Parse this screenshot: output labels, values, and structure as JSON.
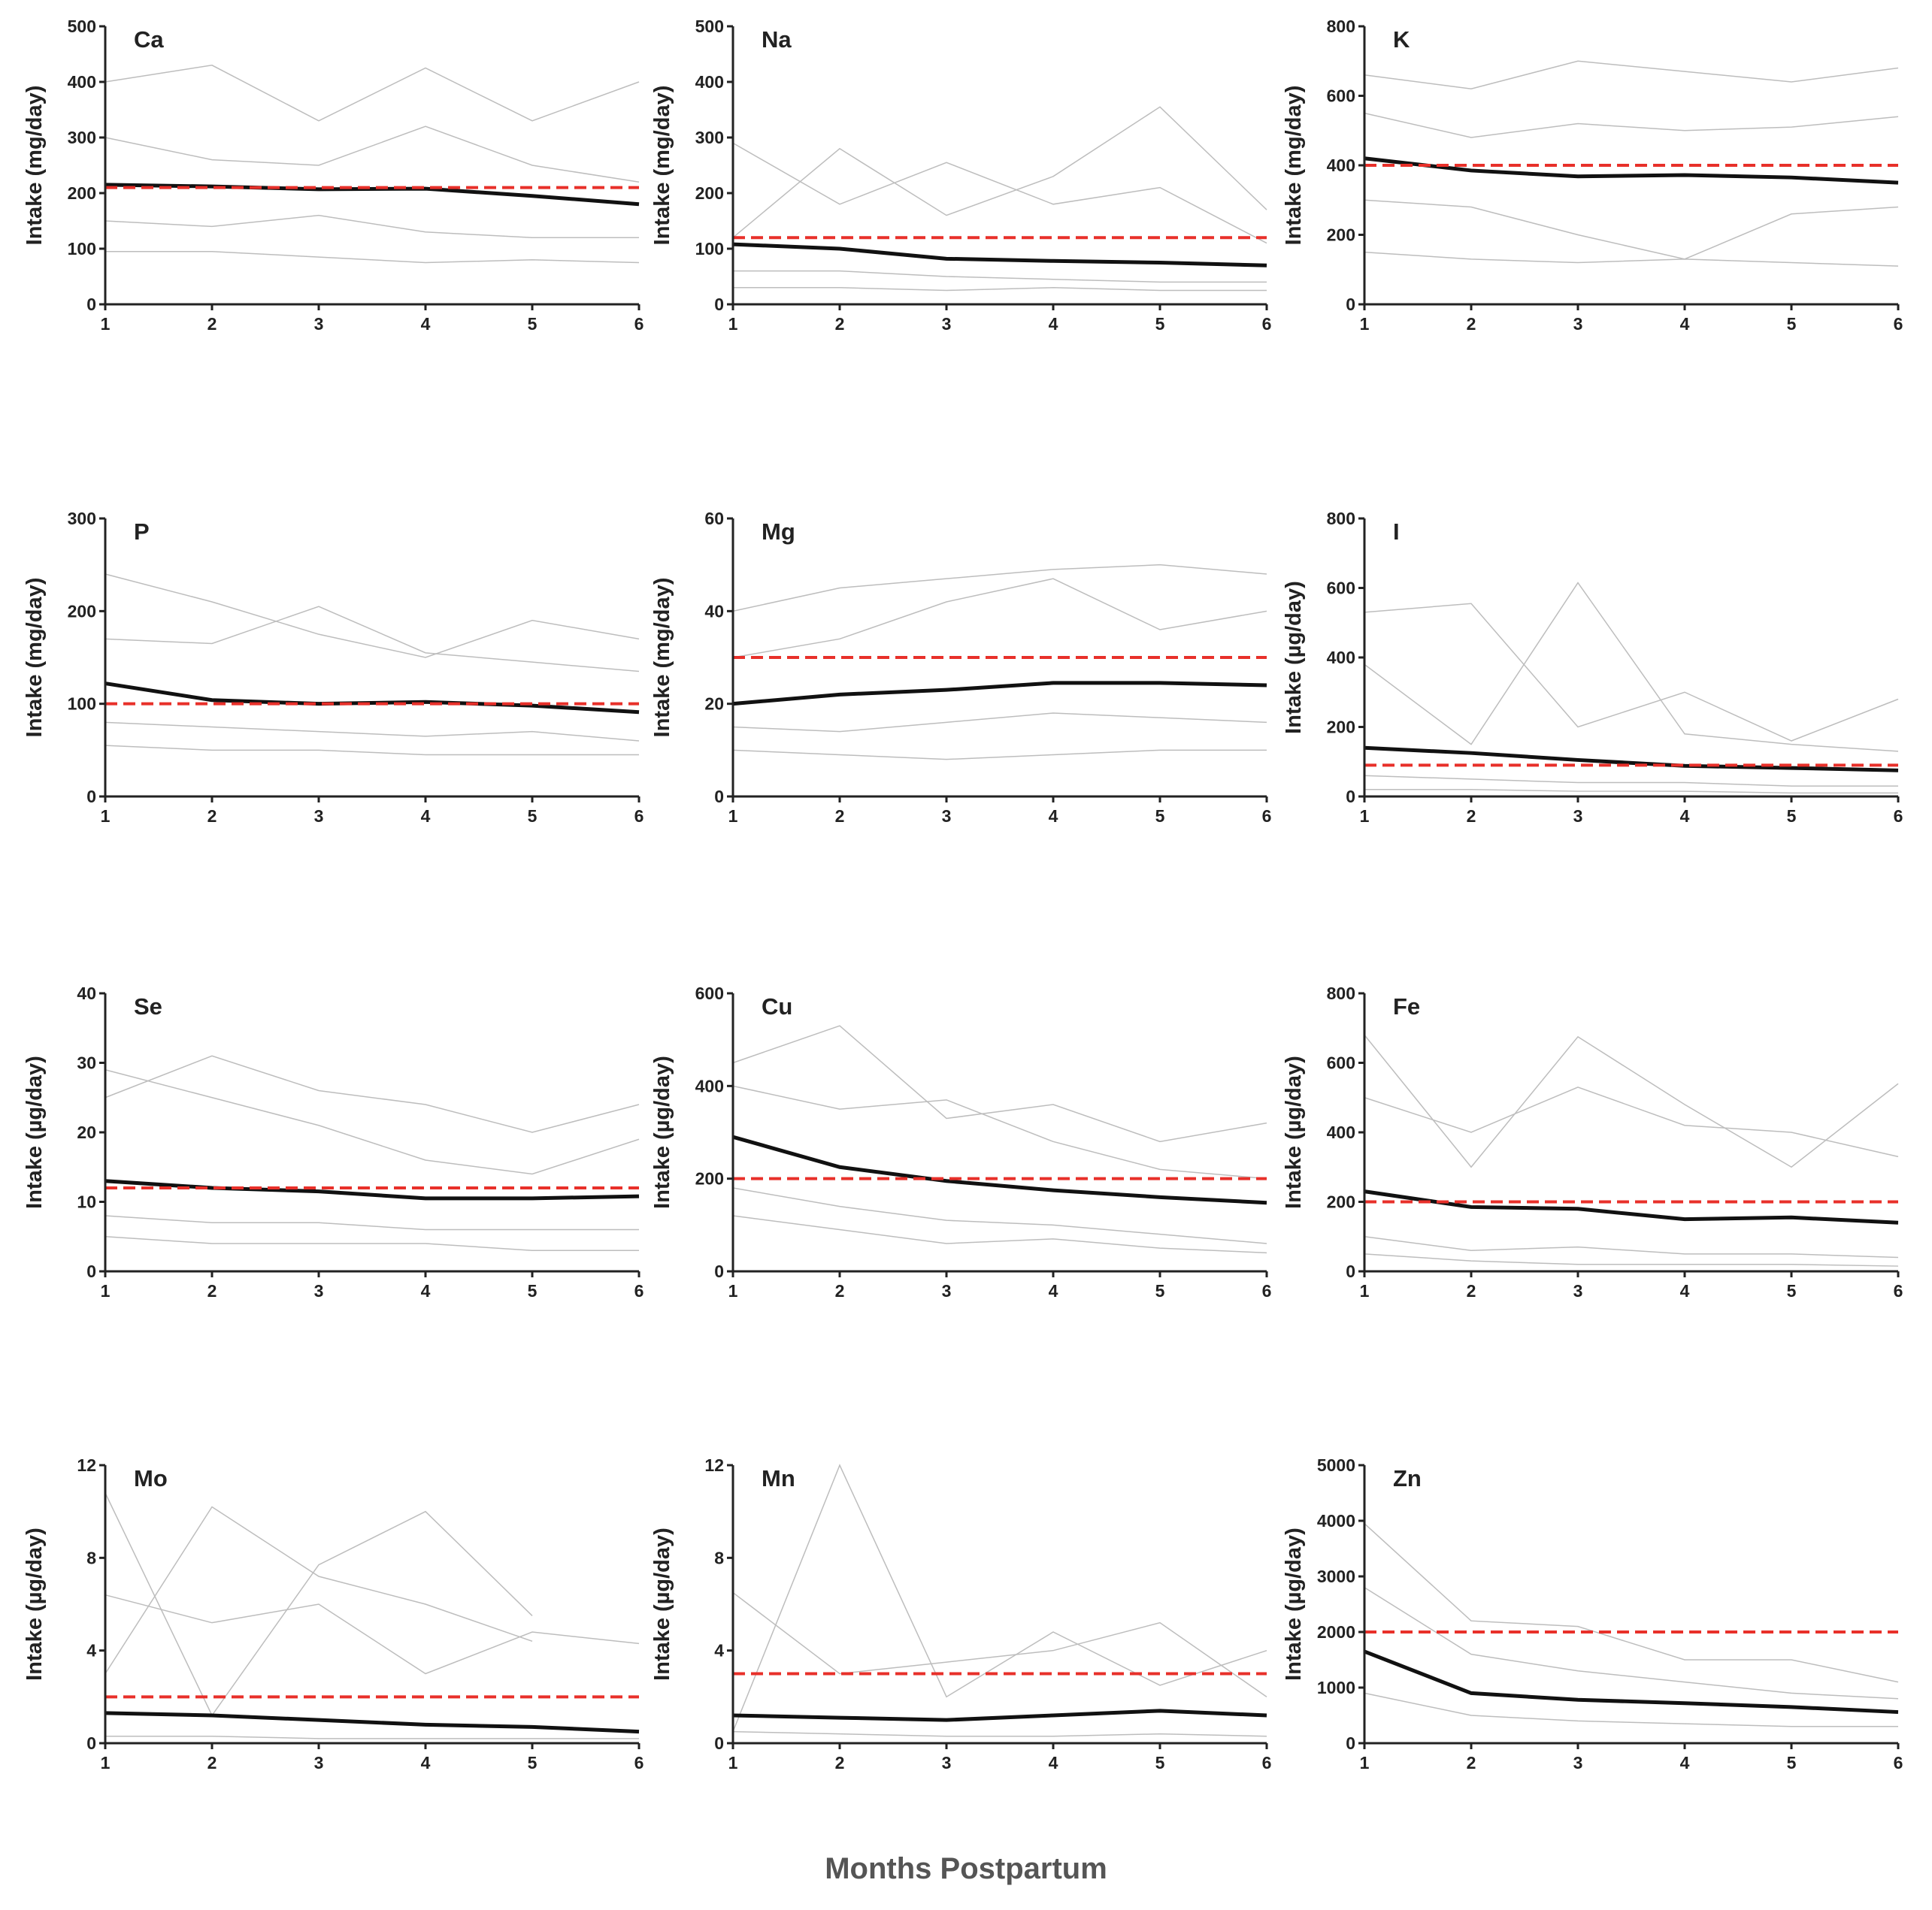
{
  "x_axis_label": "Months Postpartum",
  "chart_data": [
    {
      "type": "line",
      "title": "Ca",
      "ylabel": "Intake (mg/day)",
      "x": [
        1,
        2,
        3,
        4,
        5,
        6
      ],
      "xlim": [
        1,
        6
      ],
      "xticks": [
        1,
        2,
        3,
        4,
        5,
        6
      ],
      "ylim": [
        0,
        500
      ],
      "yticks": [
        0,
        100,
        200,
        300,
        400,
        500
      ],
      "series": [
        {
          "color": "#bdbdbd",
          "linewidth": 1.5,
          "values": [
            400,
            430,
            330,
            425,
            330,
            400
          ]
        },
        {
          "color": "#bdbdbd",
          "linewidth": 1.5,
          "values": [
            300,
            260,
            250,
            320,
            250,
            220
          ]
        },
        {
          "color": "#bdbdbd",
          "linewidth": 1.5,
          "values": [
            150,
            140,
            160,
            130,
            120,
            120
          ]
        },
        {
          "color": "#bdbdbd",
          "linewidth": 1.5,
          "values": [
            95,
            95,
            85,
            75,
            80,
            75
          ]
        },
        {
          "color": "#111111",
          "linewidth": 5,
          "values": [
            215,
            212,
            207,
            208,
            195,
            180
          ]
        }
      ],
      "reference": {
        "value": 210,
        "color": "#e8302a"
      }
    },
    {
      "type": "line",
      "title": "Na",
      "ylabel": "Intake (mg/day)",
      "x": [
        1,
        2,
        3,
        4,
        5,
        6
      ],
      "xlim": [
        1,
        6
      ],
      "xticks": [
        1,
        2,
        3,
        4,
        5,
        6
      ],
      "ylim": [
        0,
        500
      ],
      "yticks": [
        0,
        100,
        200,
        300,
        400,
        500
      ],
      "series": [
        {
          "color": "#bdbdbd",
          "linewidth": 1.5,
          "values": [
            120,
            280,
            160,
            230,
            355,
            170
          ]
        },
        {
          "color": "#bdbdbd",
          "linewidth": 1.5,
          "values": [
            290,
            180,
            255,
            180,
            210,
            110
          ]
        },
        {
          "color": "#bdbdbd",
          "linewidth": 1.5,
          "values": [
            60,
            60,
            50,
            45,
            40,
            40
          ]
        },
        {
          "color": "#bdbdbd",
          "linewidth": 1.5,
          "values": [
            30,
            30,
            25,
            30,
            25,
            25
          ]
        },
        {
          "color": "#111111",
          "linewidth": 5,
          "values": [
            108,
            100,
            82,
            78,
            75,
            70
          ]
        }
      ],
      "reference": {
        "value": 120,
        "color": "#e8302a"
      }
    },
    {
      "type": "line",
      "title": "K",
      "ylabel": "Intake (mg/day)",
      "x": [
        1,
        2,
        3,
        4,
        5,
        6
      ],
      "xlim": [
        1,
        6
      ],
      "xticks": [
        1,
        2,
        3,
        4,
        5,
        6
      ],
      "ylim": [
        0,
        800
      ],
      "yticks": [
        0,
        200,
        400,
        600,
        800
      ],
      "series": [
        {
          "color": "#bdbdbd",
          "linewidth": 1.5,
          "values": [
            660,
            620,
            700,
            670,
            640,
            680
          ]
        },
        {
          "color": "#bdbdbd",
          "linewidth": 1.5,
          "values": [
            550,
            480,
            520,
            500,
            510,
            540
          ]
        },
        {
          "color": "#bdbdbd",
          "linewidth": 1.5,
          "values": [
            300,
            280,
            200,
            130,
            260,
            280
          ]
        },
        {
          "color": "#bdbdbd",
          "linewidth": 1.5,
          "values": [
            150,
            130,
            120,
            130,
            120,
            110
          ]
        },
        {
          "color": "#111111",
          "linewidth": 5,
          "values": [
            420,
            385,
            368,
            372,
            365,
            350
          ]
        }
      ],
      "reference": {
        "value": 400,
        "color": "#e8302a"
      }
    },
    {
      "type": "line",
      "title": "P",
      "ylabel": "Intake (mg/day)",
      "x": [
        1,
        2,
        3,
        4,
        5,
        6
      ],
      "xlim": [
        1,
        6
      ],
      "xticks": [
        1,
        2,
        3,
        4,
        5,
        6
      ],
      "ylim": [
        0,
        300
      ],
      "yticks": [
        0,
        100,
        200,
        300
      ],
      "series": [
        {
          "color": "#bdbdbd",
          "linewidth": 1.5,
          "values": [
            240,
            210,
            175,
            150,
            190,
            170
          ]
        },
        {
          "color": "#bdbdbd",
          "linewidth": 1.5,
          "values": [
            170,
            165,
            205,
            155,
            145,
            135
          ]
        },
        {
          "color": "#bdbdbd",
          "linewidth": 1.5,
          "values": [
            80,
            75,
            70,
            65,
            70,
            60
          ]
        },
        {
          "color": "#bdbdbd",
          "linewidth": 1.5,
          "values": [
            55,
            50,
            50,
            45,
            45,
            45
          ]
        },
        {
          "color": "#111111",
          "linewidth": 5,
          "values": [
            122,
            104,
            100,
            102,
            98,
            91
          ]
        }
      ],
      "reference": {
        "value": 100,
        "color": "#e8302a"
      }
    },
    {
      "type": "line",
      "title": "Mg",
      "ylabel": "Intake (mg/day)",
      "x": [
        1,
        2,
        3,
        4,
        5,
        6
      ],
      "xlim": [
        1,
        6
      ],
      "xticks": [
        1,
        2,
        3,
        4,
        5,
        6
      ],
      "ylim": [
        0,
        60
      ],
      "yticks": [
        0,
        20,
        40,
        60
      ],
      "series": [
        {
          "color": "#bdbdbd",
          "linewidth": 1.5,
          "values": [
            40,
            45,
            47,
            49,
            50,
            48
          ]
        },
        {
          "color": "#bdbdbd",
          "linewidth": 1.5,
          "values": [
            30,
            34,
            42,
            47,
            36,
            40
          ]
        },
        {
          "color": "#bdbdbd",
          "linewidth": 1.5,
          "values": [
            15,
            14,
            16,
            18,
            17,
            16
          ]
        },
        {
          "color": "#bdbdbd",
          "linewidth": 1.5,
          "values": [
            10,
            9,
            8,
            9,
            10,
            10
          ]
        },
        {
          "color": "#111111",
          "linewidth": 5,
          "values": [
            20,
            22,
            23,
            24.5,
            24.5,
            24
          ]
        }
      ],
      "reference": {
        "value": 30,
        "color": "#e8302a"
      }
    },
    {
      "type": "line",
      "title": "I",
      "ylabel": "Intake (µg/day)",
      "x": [
        1,
        2,
        3,
        4,
        5,
        6
      ],
      "xlim": [
        1,
        6
      ],
      "xticks": [
        1,
        2,
        3,
        4,
        5,
        6
      ],
      "ylim": [
        0,
        800
      ],
      "yticks": [
        0,
        200,
        400,
        600,
        800
      ],
      "series": [
        {
          "color": "#bdbdbd",
          "linewidth": 1.5,
          "values": [
            530,
            555,
            200,
            300,
            160,
            280
          ]
        },
        {
          "color": "#bdbdbd",
          "linewidth": 1.5,
          "values": [
            380,
            150,
            615,
            180,
            150,
            130
          ]
        },
        {
          "color": "#bdbdbd",
          "linewidth": 1.5,
          "values": [
            60,
            50,
            40,
            40,
            30,
            30
          ]
        },
        {
          "color": "#bdbdbd",
          "linewidth": 1.5,
          "values": [
            20,
            20,
            15,
            15,
            10,
            10
          ]
        },
        {
          "color": "#111111",
          "linewidth": 5,
          "values": [
            140,
            125,
            105,
            88,
            82,
            75
          ]
        }
      ],
      "reference": {
        "value": 90,
        "color": "#e8302a"
      }
    },
    {
      "type": "line",
      "title": "Se",
      "ylabel": "Intake (µg/day)",
      "x": [
        1,
        2,
        3,
        4,
        5,
        6
      ],
      "xlim": [
        1,
        6
      ],
      "xticks": [
        1,
        2,
        3,
        4,
        5,
        6
      ],
      "ylim": [
        0,
        40
      ],
      "yticks": [
        0,
        10,
        20,
        30,
        40
      ],
      "series": [
        {
          "color": "#bdbdbd",
          "linewidth": 1.5,
          "values": [
            25,
            31,
            26,
            24,
            20,
            24
          ]
        },
        {
          "color": "#bdbdbd",
          "linewidth": 1.5,
          "values": [
            29,
            25,
            21,
            16,
            14,
            19
          ]
        },
        {
          "color": "#bdbdbd",
          "linewidth": 1.5,
          "values": [
            8,
            7,
            7,
            6,
            6,
            6
          ]
        },
        {
          "color": "#bdbdbd",
          "linewidth": 1.5,
          "values": [
            5,
            4,
            4,
            4,
            3,
            3
          ]
        },
        {
          "color": "#111111",
          "linewidth": 5,
          "values": [
            13,
            12,
            11.5,
            10.5,
            10.5,
            10.8
          ]
        }
      ],
      "reference": {
        "value": 12,
        "color": "#e8302a"
      }
    },
    {
      "type": "line",
      "title": "Cu",
      "ylabel": "Intake (µg/day)",
      "x": [
        1,
        2,
        3,
        4,
        5,
        6
      ],
      "xlim": [
        1,
        6
      ],
      "xticks": [
        1,
        2,
        3,
        4,
        5,
        6
      ],
      "ylim": [
        0,
        600
      ],
      "yticks": [
        0,
        200,
        400,
        600
      ],
      "series": [
        {
          "color": "#bdbdbd",
          "linewidth": 1.5,
          "values": [
            450,
            530,
            330,
            360,
            280,
            320
          ]
        },
        {
          "color": "#bdbdbd",
          "linewidth": 1.5,
          "values": [
            400,
            350,
            370,
            280,
            220,
            200
          ]
        },
        {
          "color": "#bdbdbd",
          "linewidth": 1.5,
          "values": [
            180,
            140,
            110,
            100,
            80,
            60
          ]
        },
        {
          "color": "#bdbdbd",
          "linewidth": 1.5,
          "values": [
            120,
            90,
            60,
            70,
            50,
            40
          ]
        },
        {
          "color": "#111111",
          "linewidth": 5,
          "values": [
            290,
            225,
            195,
            175,
            160,
            148
          ]
        }
      ],
      "reference": {
        "value": 200,
        "color": "#e8302a"
      }
    },
    {
      "type": "line",
      "title": "Fe",
      "ylabel": "Intake (µg/day)",
      "x": [
        1,
        2,
        3,
        4,
        5,
        6
      ],
      "xlim": [
        1,
        6
      ],
      "xticks": [
        1,
        2,
        3,
        4,
        5,
        6
      ],
      "ylim": [
        0,
        800
      ],
      "yticks": [
        0,
        200,
        400,
        600,
        800
      ],
      "series": [
        {
          "color": "#bdbdbd",
          "linewidth": 1.5,
          "values": [
            680,
            300,
            675,
            480,
            300,
            540
          ]
        },
        {
          "color": "#bdbdbd",
          "linewidth": 1.5,
          "values": [
            500,
            400,
            530,
            420,
            400,
            330
          ]
        },
        {
          "color": "#bdbdbd",
          "linewidth": 1.5,
          "values": [
            100,
            60,
            70,
            50,
            50,
            40
          ]
        },
        {
          "color": "#bdbdbd",
          "linewidth": 1.5,
          "values": [
            50,
            30,
            20,
            20,
            20,
            15
          ]
        },
        {
          "color": "#111111",
          "linewidth": 5,
          "values": [
            230,
            185,
            180,
            150,
            155,
            140
          ]
        }
      ],
      "reference": {
        "value": 200,
        "color": "#e8302a"
      }
    },
    {
      "type": "line",
      "title": "Mo",
      "ylabel": "Intake (µg/day)",
      "x": [
        1,
        2,
        3,
        4,
        5,
        6
      ],
      "xlim": [
        1,
        6
      ],
      "xticks": [
        1,
        2,
        3,
        4,
        5,
        6
      ],
      "ylim": [
        0,
        12
      ],
      "yticks": [
        0,
        4,
        8,
        12
      ],
      "series": [
        {
          "color": "#bdbdbd",
          "linewidth": 1.5,
          "values": [
            10.8,
            1.2,
            7.7,
            10,
            5.5,
            null
          ]
        },
        {
          "color": "#bdbdbd",
          "linewidth": 1.5,
          "values": [
            3,
            10.2,
            7.2,
            6,
            4.4,
            null
          ]
        },
        {
          "color": "#bdbdbd",
          "linewidth": 1.5,
          "values": [
            6.4,
            5.2,
            6,
            3,
            4.8,
            4.3
          ]
        },
        {
          "color": "#bdbdbd",
          "linewidth": 1.5,
          "values": [
            0.3,
            0.3,
            0.2,
            0.2,
            0.2,
            0.2
          ]
        },
        {
          "color": "#111111",
          "linewidth": 5,
          "values": [
            1.3,
            1.2,
            1.0,
            0.8,
            0.7,
            0.5
          ]
        }
      ],
      "reference": {
        "value": 2,
        "color": "#e8302a"
      }
    },
    {
      "type": "line",
      "title": "Mn",
      "ylabel": "Intake (µg/day)",
      "x": [
        1,
        2,
        3,
        4,
        5,
        6
      ],
      "xlim": [
        1,
        6
      ],
      "xticks": [
        1,
        2,
        3,
        4,
        5,
        6
      ],
      "ylim": [
        0,
        12
      ],
      "yticks": [
        0,
        4,
        8,
        12
      ],
      "series": [
        {
          "color": "#bdbdbd",
          "linewidth": 1.5,
          "values": [
            0.5,
            12,
            2,
            4.8,
            2.5,
            4
          ]
        },
        {
          "color": "#bdbdbd",
          "linewidth": 1.5,
          "values": [
            6.5,
            3,
            3.5,
            4,
            5.2,
            2
          ]
        },
        {
          "color": "#bdbdbd",
          "linewidth": 1.5,
          "values": [
            0.5,
            0.4,
            0.3,
            0.3,
            0.4,
            0.3
          ]
        },
        {
          "color": "#111111",
          "linewidth": 5,
          "values": [
            1.2,
            1.1,
            1.0,
            1.2,
            1.4,
            1.2
          ]
        }
      ],
      "reference": {
        "value": 3,
        "color": "#e8302a"
      }
    },
    {
      "type": "line",
      "title": "Zn",
      "ylabel": "Intake (µg/day)",
      "x": [
        1,
        2,
        3,
        4,
        5,
        6
      ],
      "xlim": [
        1,
        6
      ],
      "xticks": [
        1,
        2,
        3,
        4,
        5,
        6
      ],
      "ylim": [
        0,
        5000
      ],
      "yticks": [
        0,
        1000,
        2000,
        3000,
        4000,
        5000
      ],
      "series": [
        {
          "color": "#bdbdbd",
          "linewidth": 1.5,
          "values": [
            3950,
            2200,
            2100,
            1500,
            1500,
            1100
          ]
        },
        {
          "color": "#bdbdbd",
          "linewidth": 1.5,
          "values": [
            2800,
            1600,
            1300,
            1100,
            900,
            800
          ]
        },
        {
          "color": "#bdbdbd",
          "linewidth": 1.5,
          "values": [
            900,
            500,
            400,
            350,
            300,
            300
          ]
        },
        {
          "color": "#111111",
          "linewidth": 5,
          "values": [
            1650,
            900,
            780,
            720,
            650,
            560
          ]
        }
      ],
      "reference": {
        "value": 2000,
        "color": "#e8302a"
      }
    }
  ]
}
